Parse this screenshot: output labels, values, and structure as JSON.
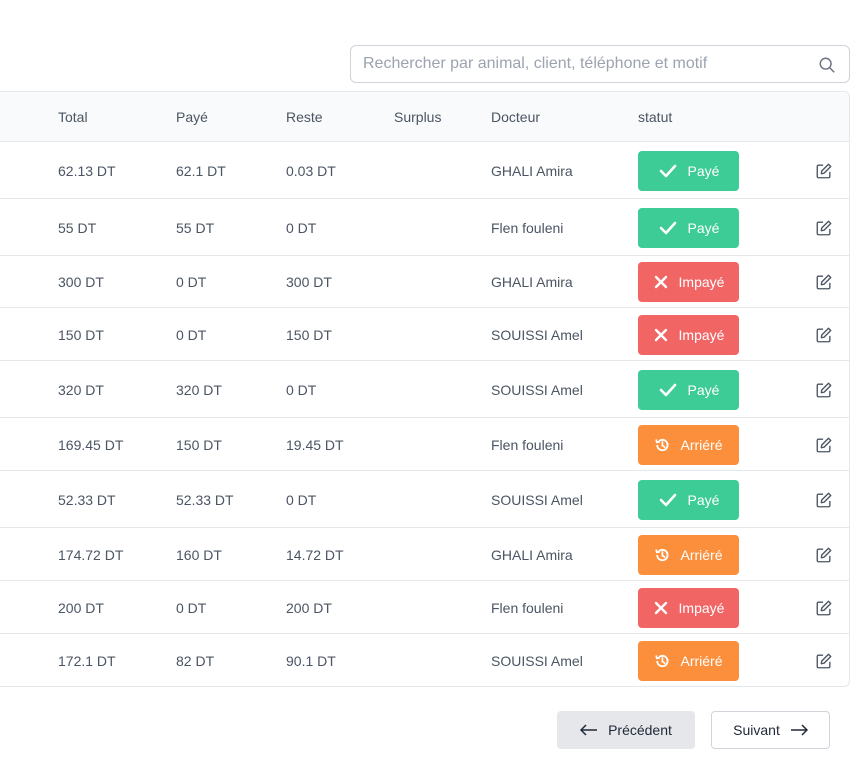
{
  "search": {
    "placeholder": "Rechercher par animal, client, téléphone et motif",
    "value": ""
  },
  "table": {
    "headers": {
      "total": "Total",
      "paye": "Payé",
      "reste": "Reste",
      "surplus": "Surplus",
      "docteur": "Docteur",
      "statut": "statut"
    },
    "rows": [
      {
        "total": "62.13 DT",
        "paye": "62.1 DT",
        "reste": "0.03 DT",
        "surplus": "",
        "docteur": "GHALI Amira",
        "status": "Payé",
        "status_type": "paid"
      },
      {
        "total": "55 DT",
        "paye": "55 DT",
        "reste": "0 DT",
        "surplus": "",
        "docteur": "Flen fouleni",
        "status": "Payé",
        "status_type": "paid"
      },
      {
        "total": "300 DT",
        "paye": "0 DT",
        "reste": "300 DT",
        "surplus": "",
        "docteur": "GHALI Amira",
        "status": "Impayé",
        "status_type": "unpaid"
      },
      {
        "total": "150 DT",
        "paye": "0 DT",
        "reste": "150 DT",
        "surplus": "",
        "docteur": "SOUISSI Amel",
        "status": "Impayé",
        "status_type": "unpaid"
      },
      {
        "total": "320 DT",
        "paye": "320 DT",
        "reste": "0 DT",
        "surplus": "",
        "docteur": "SOUISSI Amel",
        "status": "Payé",
        "status_type": "paid"
      },
      {
        "total": "169.45 DT",
        "paye": "150 DT",
        "reste": "19.45 DT",
        "surplus": "",
        "docteur": "Flen fouleni",
        "status": "Arriéré",
        "status_type": "late"
      },
      {
        "total": "52.33 DT",
        "paye": "52.33 DT",
        "reste": "0 DT",
        "surplus": "",
        "docteur": "SOUISSI Amel",
        "status": "Payé",
        "status_type": "paid"
      },
      {
        "total": "174.72 DT",
        "paye": "160 DT",
        "reste": "14.72 DT",
        "surplus": "",
        "docteur": "GHALI Amira",
        "status": "Arriéré",
        "status_type": "late"
      },
      {
        "total": "200 DT",
        "paye": "0 DT",
        "reste": "200 DT",
        "surplus": "",
        "docteur": "Flen fouleni",
        "status": "Impayé",
        "status_type": "unpaid"
      },
      {
        "total": "172.1 DT",
        "paye": "82 DT",
        "reste": "90.1 DT",
        "surplus": "",
        "docteur": "SOUISSI Amel",
        "status": "Arriéré",
        "status_type": "late"
      }
    ]
  },
  "pagination": {
    "prev_label": "Précédent",
    "next_label": "Suivant"
  },
  "colors": {
    "paid": "#3dcb96",
    "unpaid": "#f16565",
    "late": "#fb8f3c",
    "border": "#e5e7eb",
    "header_bg": "#f9fafb"
  },
  "icons": {
    "search": "search-icon",
    "paid": "check-icon",
    "unpaid": "x-icon",
    "late": "history-icon",
    "edit": "edit-icon",
    "prev": "arrow-left-icon",
    "next": "arrow-right-icon"
  }
}
